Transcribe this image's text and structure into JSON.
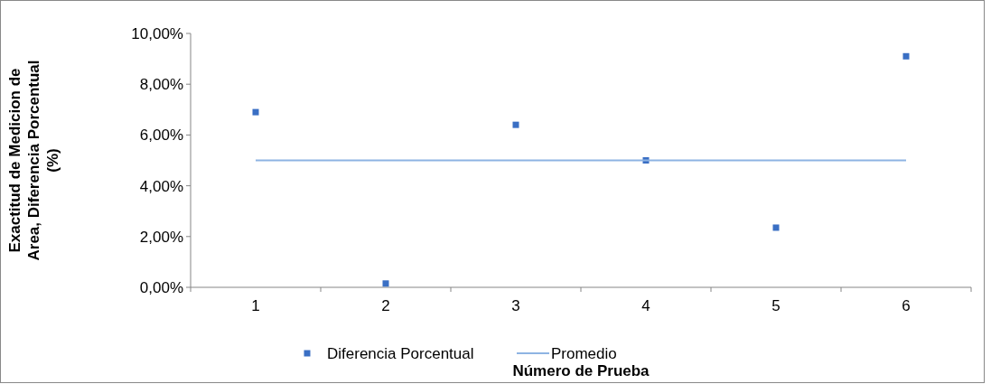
{
  "chart_data": {
    "type": "scatter",
    "xlabel": "Número de Prueba",
    "ylabel": "Exactitud de Medicion de Area, Diferencia Porcentual (%)",
    "categories": [
      "1",
      "2",
      "3",
      "4",
      "5",
      "6"
    ],
    "series": [
      {
        "name": "Diferencia Porcentual",
        "color": "#3a6fc4",
        "values": [
          6.9,
          0.15,
          6.4,
          5.0,
          2.35,
          9.1
        ]
      },
      {
        "name": "Promedio",
        "type": "line",
        "marker": "none",
        "color": "#8eb4e3",
        "values": [
          5.0,
          5.0,
          5.0,
          5.0,
          5.0,
          5.0
        ]
      }
    ],
    "ylim": [
      0,
      10
    ],
    "yticks": [
      {
        "value": 0,
        "label": "0,00%"
      },
      {
        "value": 2,
        "label": "2,00%"
      },
      {
        "value": 4,
        "label": "4,00%"
      },
      {
        "value": 6,
        "label": "6,00%"
      },
      {
        "value": 8,
        "label": "8,00%"
      },
      {
        "value": 10,
        "label": "10,00%"
      }
    ],
    "grid": false,
    "legend": "bottom",
    "marker": "square"
  }
}
